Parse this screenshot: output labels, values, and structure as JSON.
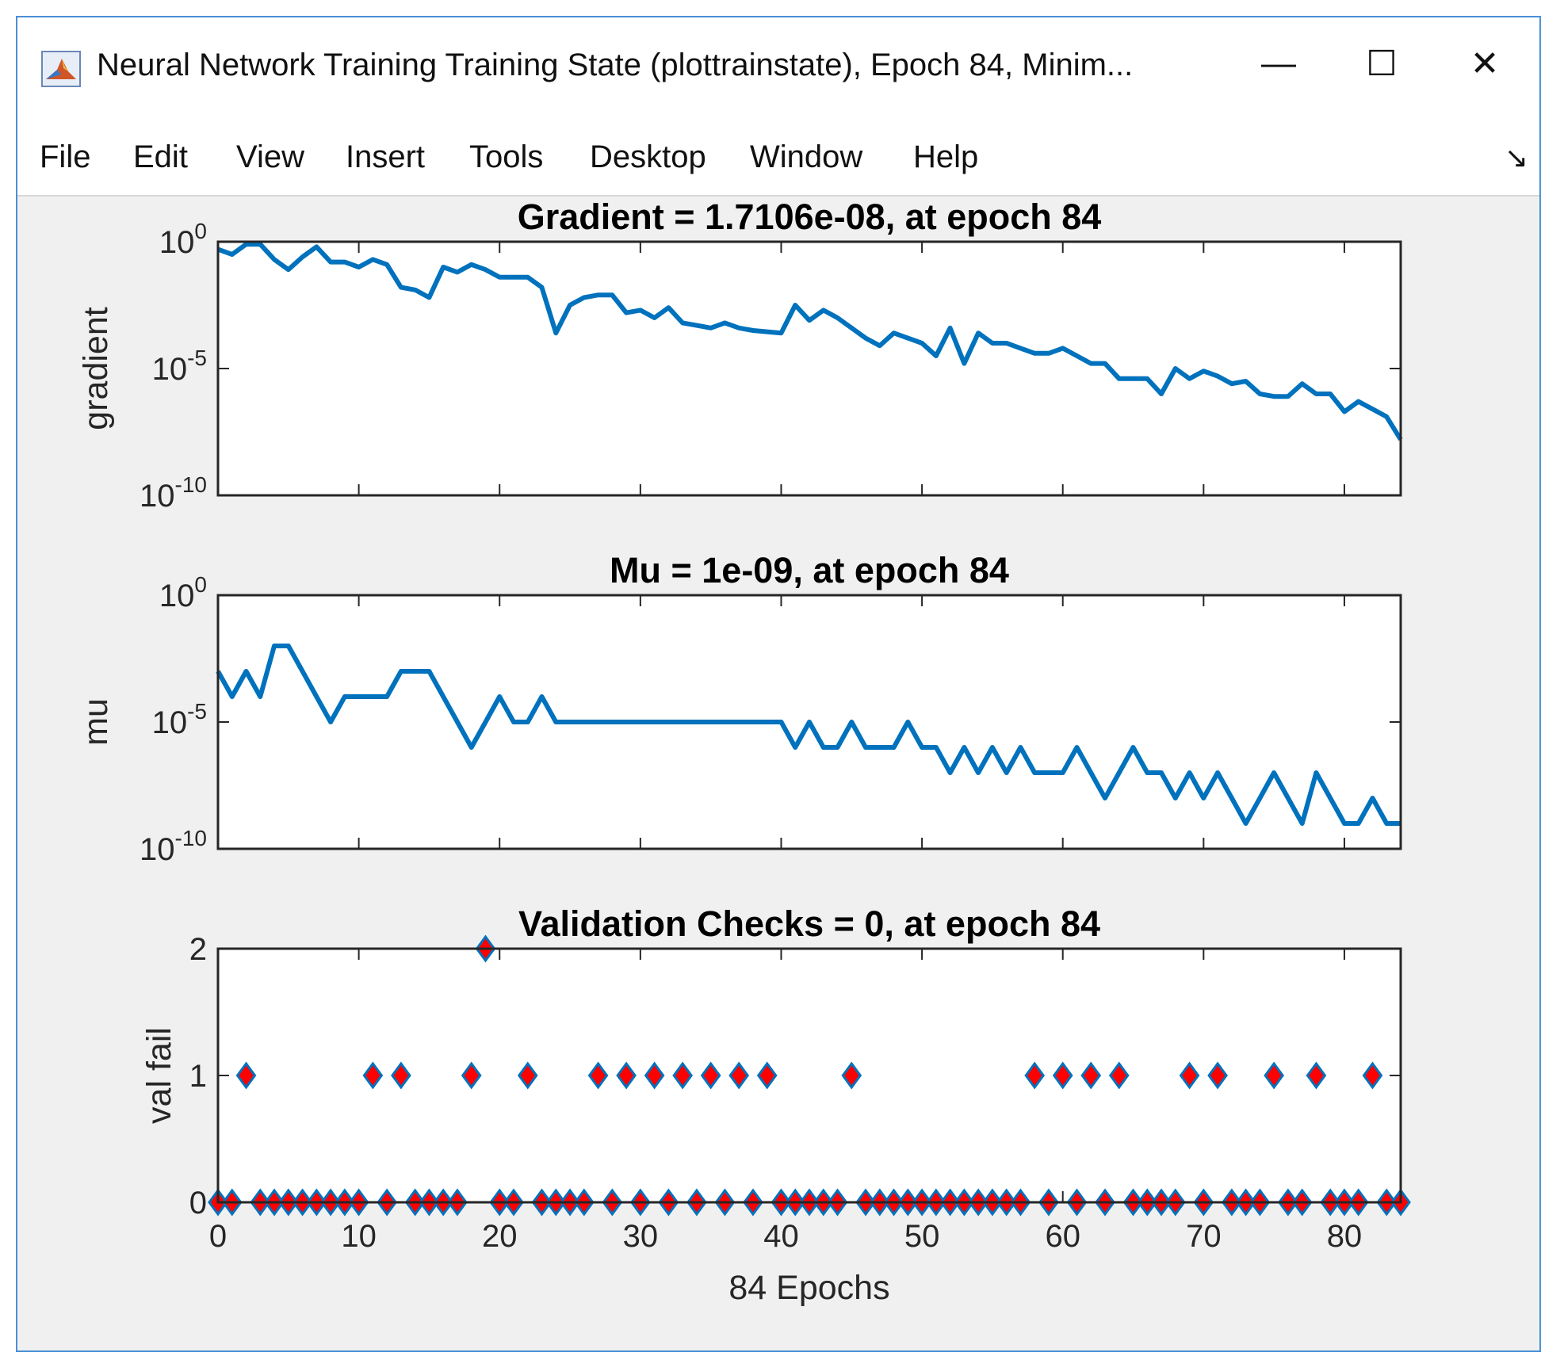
{
  "window": {
    "title": "Neural Network Training Training State (plottrainstate), Epoch 84, Minim...",
    "minimize_glyph": "—",
    "maximize_glyph": "☐",
    "close_glyph": "✕",
    "icon": "matlab-logo-icon"
  },
  "menu": {
    "items": [
      "File",
      "Edit",
      "View",
      "Insert",
      "Tools",
      "Desktop",
      "Window",
      "Help"
    ],
    "dock_glyph": "↘"
  },
  "colors": {
    "line": "#0072bd",
    "marker_fill": "#ff0000",
    "marker_edge": "#0072bd",
    "figure_bg": "#f0f0f0"
  },
  "chart_data": [
    {
      "type": "line",
      "title": "Gradient = 1.7106e-08, at epoch 84",
      "ylabel": "gradient",
      "yscale": "log",
      "ylim_exp": [
        -10,
        0
      ],
      "ytick_exps": [
        0,
        -5,
        -10
      ],
      "ytick_labels": [
        "10^0",
        "10^-5",
        "10^-10"
      ],
      "x": [
        0,
        1,
        2,
        3,
        4,
        5,
        6,
        7,
        8,
        9,
        10,
        11,
        12,
        13,
        14,
        15,
        16,
        17,
        18,
        19,
        20,
        21,
        22,
        23,
        24,
        25,
        26,
        27,
        28,
        29,
        30,
        31,
        32,
        33,
        34,
        35,
        36,
        37,
        38,
        39,
        40,
        41,
        42,
        43,
        44,
        45,
        46,
        47,
        48,
        49,
        50,
        51,
        52,
        53,
        54,
        55,
        56,
        57,
        58,
        59,
        60,
        61,
        62,
        63,
        64,
        65,
        66,
        67,
        68,
        69,
        70,
        71,
        72,
        73,
        74,
        75,
        76,
        77,
        78,
        79,
        80,
        81,
        82,
        83,
        84
      ],
      "y_log10": [
        -0.3,
        -0.5,
        -0.1,
        -0.1,
        -0.7,
        -1.1,
        -0.6,
        -0.2,
        -0.8,
        -0.8,
        -1.0,
        -0.7,
        -0.9,
        -1.8,
        -1.9,
        -2.2,
        -1.0,
        -1.2,
        -0.9,
        -1.1,
        -1.4,
        -1.4,
        -1.4,
        -1.8,
        -3.6,
        -2.5,
        -2.2,
        -2.1,
        -2.1,
        -2.8,
        -2.7,
        -3.0,
        -2.6,
        -3.2,
        -3.3,
        -3.4,
        -3.2,
        -3.4,
        -3.5,
        -3.55,
        -3.6,
        -2.5,
        -3.1,
        -2.7,
        -3.0,
        -3.4,
        -3.8,
        -4.1,
        -3.6,
        -3.8,
        -4.0,
        -4.5,
        -3.4,
        -4.8,
        -3.6,
        -4.0,
        -4.0,
        -4.2,
        -4.4,
        -4.4,
        -4.2,
        -4.5,
        -4.8,
        -4.8,
        -5.4,
        -5.4,
        -5.4,
        -6.0,
        -5.0,
        -5.4,
        -5.1,
        -5.3,
        -5.6,
        -5.5,
        -6.0,
        -6.1,
        -6.1,
        -5.6,
        -6.0,
        -6.0,
        -6.7,
        -6.3,
        -6.6,
        -6.9,
        -7.8
      ]
    },
    {
      "type": "line",
      "title": "Mu = 1e-09, at epoch 84",
      "ylabel": "mu",
      "yscale": "log",
      "ylim_exp": [
        -10,
        0
      ],
      "ytick_exps": [
        0,
        -5,
        -10
      ],
      "ytick_labels": [
        "10^0",
        "10^-5",
        "10^-10"
      ],
      "x": [
        0,
        1,
        2,
        3,
        4,
        5,
        6,
        7,
        8,
        9,
        10,
        11,
        12,
        13,
        14,
        15,
        16,
        17,
        18,
        19,
        20,
        21,
        22,
        23,
        24,
        25,
        26,
        27,
        28,
        29,
        30,
        31,
        32,
        33,
        34,
        35,
        36,
        37,
        38,
        39,
        40,
        41,
        42,
        43,
        44,
        45,
        46,
        47,
        48,
        49,
        50,
        51,
        52,
        53,
        54,
        55,
        56,
        57,
        58,
        59,
        60,
        61,
        62,
        63,
        64,
        65,
        66,
        67,
        68,
        69,
        70,
        71,
        72,
        73,
        74,
        75,
        76,
        77,
        78,
        79,
        80,
        81,
        82,
        83,
        84
      ],
      "y_log10": [
        -3,
        -4,
        -3,
        -4,
        -2,
        -2,
        -3,
        -4,
        -5,
        -4,
        -4,
        -4,
        -4,
        -3,
        -3,
        -3,
        -4,
        -5,
        -6,
        -5,
        -4,
        -5,
        -5,
        -4,
        -5,
        -5,
        -5,
        -5,
        -5,
        -5,
        -5,
        -5,
        -5,
        -5,
        -5,
        -5,
        -5,
        -5,
        -5,
        -5,
        -5,
        -6,
        -5,
        -6,
        -6,
        -5,
        -6,
        -6,
        -6,
        -5,
        -6,
        -6,
        -7,
        -6,
        -7,
        -6,
        -7,
        -6,
        -7,
        -7,
        -7,
        -6,
        -7,
        -8,
        -7,
        -6,
        -7,
        -7,
        -8,
        -7,
        -8,
        -7,
        -8,
        -9,
        -8,
        -7,
        -8,
        -9,
        -7,
        -8,
        -9,
        -9,
        -8,
        -9,
        -9
      ]
    },
    {
      "type": "scatter",
      "title": "Validation Checks = 0, at epoch 84",
      "ylabel": "val fail",
      "xlabel": "84 Epochs",
      "ylim": [
        0,
        2
      ],
      "yticks": [
        0,
        1,
        2
      ],
      "xticks": [
        0,
        10,
        20,
        30,
        40,
        50,
        60,
        70,
        80
      ],
      "x": [
        0,
        1,
        2,
        3,
        4,
        5,
        6,
        7,
        8,
        9,
        10,
        11,
        12,
        13,
        14,
        15,
        16,
        17,
        18,
        19,
        20,
        21,
        22,
        23,
        24,
        25,
        26,
        27,
        28,
        29,
        30,
        31,
        32,
        33,
        34,
        35,
        36,
        37,
        38,
        39,
        40,
        41,
        42,
        43,
        44,
        45,
        46,
        47,
        48,
        49,
        50,
        51,
        52,
        53,
        54,
        55,
        56,
        57,
        58,
        59,
        60,
        61,
        62,
        63,
        64,
        65,
        66,
        67,
        68,
        69,
        70,
        71,
        72,
        73,
        74,
        75,
        76,
        77,
        78,
        79,
        80,
        81,
        82,
        83,
        84
      ],
      "y": [
        0,
        0,
        1,
        0,
        0,
        0,
        0,
        0,
        0,
        0,
        0,
        1,
        0,
        1,
        0,
        0,
        0,
        0,
        1,
        2,
        0,
        0,
        1,
        0,
        0,
        0,
        0,
        1,
        0,
        1,
        0,
        1,
        0,
        1,
        0,
        1,
        0,
        1,
        0,
        1,
        0,
        0,
        0,
        0,
        0,
        1,
        0,
        0,
        0,
        0,
        0,
        0,
        0,
        0,
        0,
        0,
        0,
        0,
        1,
        0,
        1,
        0,
        1,
        0,
        1,
        0,
        0,
        0,
        0,
        1,
        0,
        1,
        0,
        0,
        0,
        1,
        0,
        0,
        1,
        0,
        0,
        0,
        1,
        0,
        0
      ]
    }
  ]
}
